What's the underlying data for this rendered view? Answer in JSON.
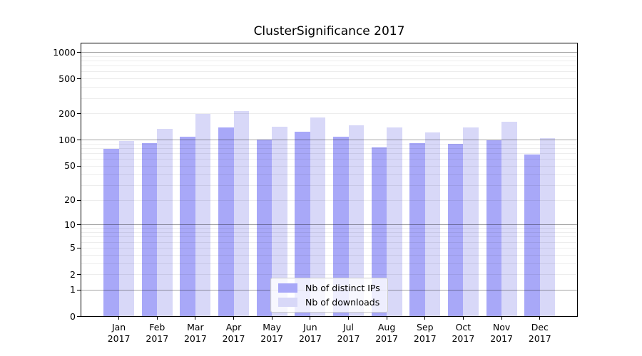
{
  "chart_data": {
    "type": "bar",
    "title": "ClusterSignificance 2017",
    "categories": [
      "Jan",
      "Feb",
      "Mar",
      "Apr",
      "May",
      "Jun",
      "Jul",
      "Aug",
      "Sep",
      "Oct",
      "Nov",
      "Dec"
    ],
    "category_year": "2017",
    "series": [
      {
        "name": "Nb of distinct IPs",
        "color": "#a8a8f8",
        "values": [
          78,
          92,
          108,
          138,
          100,
          124,
          109,
          82,
          92,
          90,
          98,
          68
        ]
      },
      {
        "name": "Nb of downloads",
        "color": "#d8d8f8",
        "values": [
          97,
          134,
          198,
          214,
          140,
          181,
          145,
          137,
          121,
          138,
          161,
          104
        ]
      }
    ],
    "yscale": "log1p",
    "yticks": [
      0,
      1,
      2,
      5,
      10,
      20,
      50,
      100,
      200,
      500,
      1000
    ],
    "ylim": [
      0,
      1250
    ],
    "grid": true,
    "grid_major_at": [
      1,
      10,
      100,
      1000
    ],
    "legend_position": "lower center",
    "xlabel": "",
    "ylabel": ""
  }
}
